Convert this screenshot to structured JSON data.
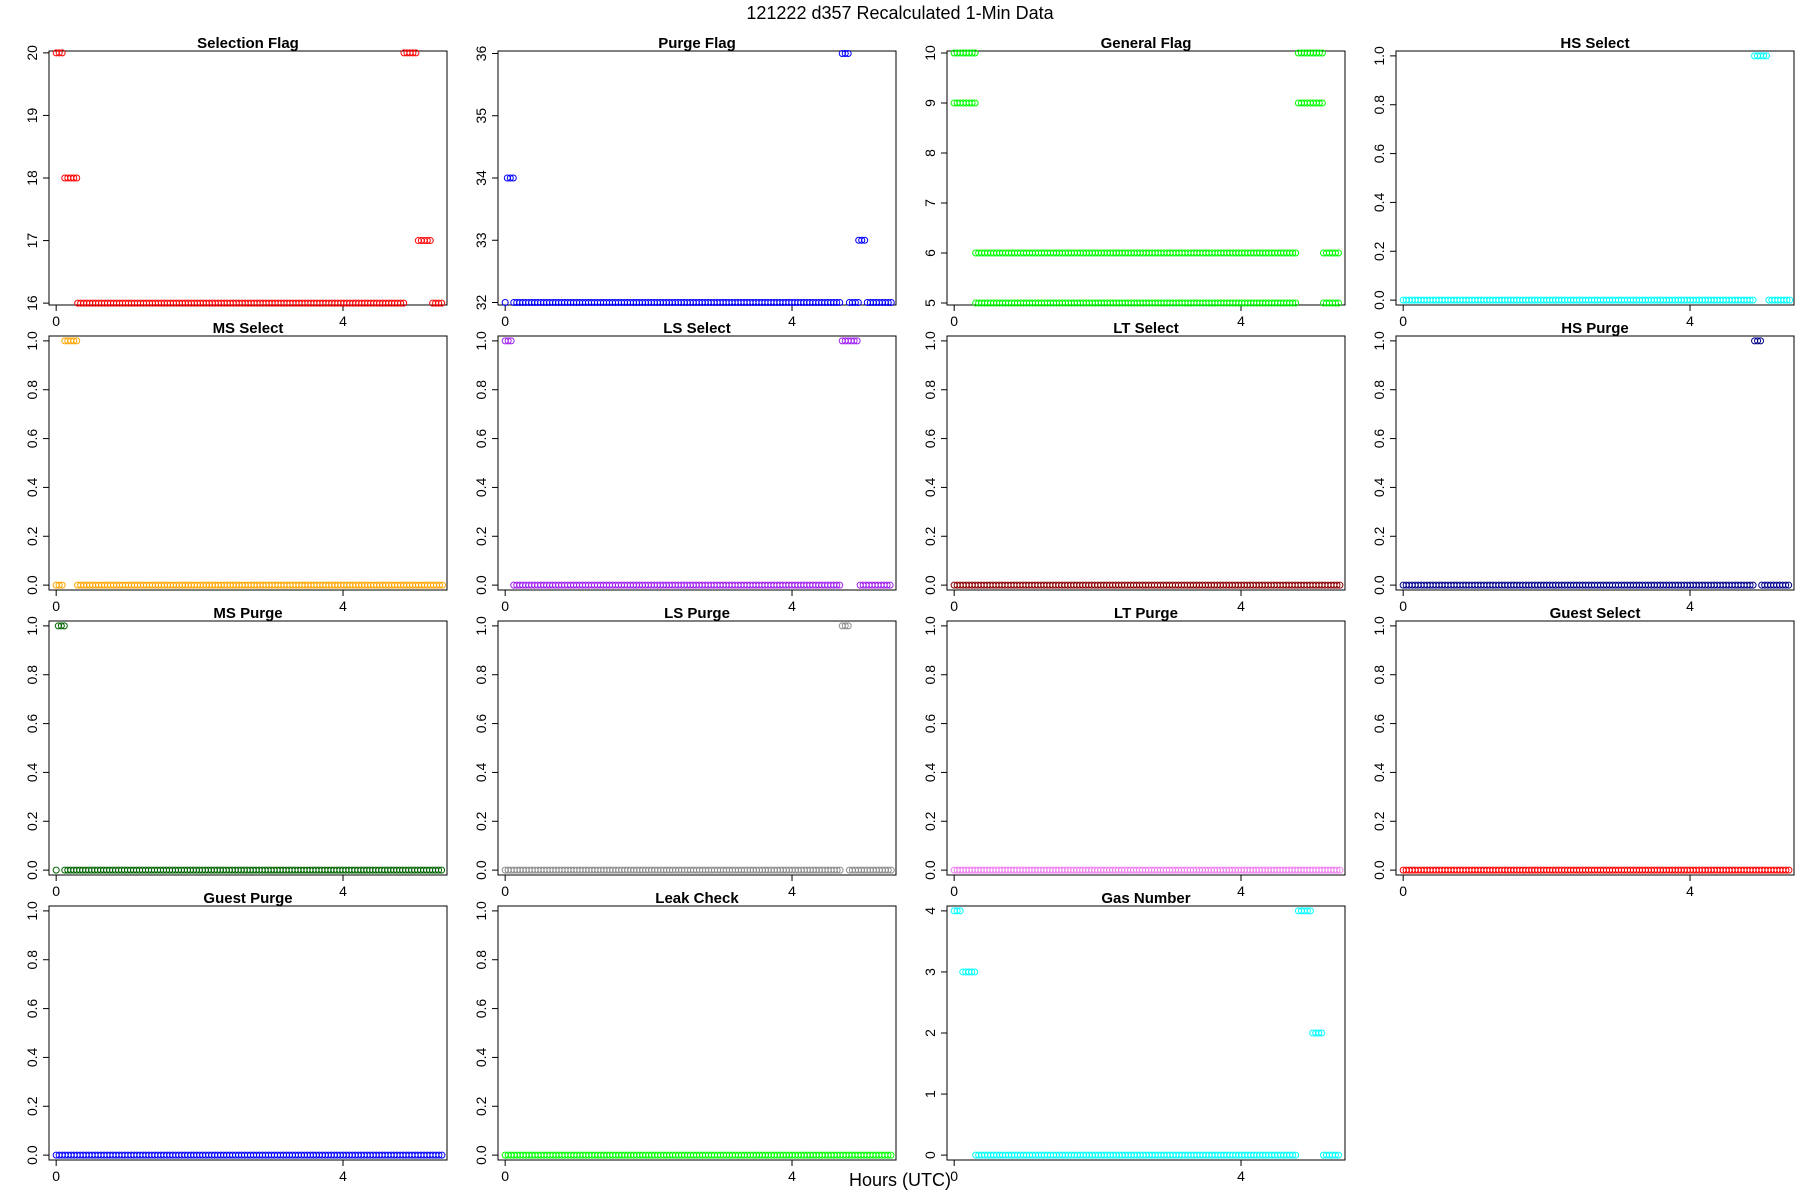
{
  "figure": {
    "title": "121222   d357   Recalculated 1-Min Data",
    "xlabel": "Hours (UTC)"
  },
  "chart_data": [
    {
      "type": "scatter",
      "title": "Selection Flag",
      "color": "#ff0000",
      "xlim": [
        -0.1,
        5.45
      ],
      "ylim": [
        15.97,
        20.03
      ],
      "xticks": [
        0,
        4
      ],
      "yticks": [
        16,
        17,
        18,
        19,
        20
      ],
      "runs": [
        [
          0,
          0.12,
          20
        ],
        [
          0.12,
          0.3,
          18
        ],
        [
          0.3,
          4.85,
          16
        ],
        [
          4.85,
          5.05,
          20
        ],
        [
          5.05,
          5.25,
          17
        ],
        [
          5.25,
          5.4,
          16
        ]
      ]
    },
    {
      "type": "scatter",
      "title": "Purge Flag",
      "color": "#0000ff",
      "xlim": [
        -0.1,
        5.45
      ],
      "ylim": [
        31.96,
        36.04
      ],
      "xticks": [
        0,
        4
      ],
      "yticks": [
        32,
        33,
        34,
        35,
        36
      ],
      "runs": [
        [
          0,
          0.03,
          32
        ],
        [
          0.03,
          0.12,
          34
        ],
        [
          0.12,
          4.7,
          32
        ],
        [
          4.7,
          4.8,
          36
        ],
        [
          4.8,
          4.93,
          32
        ],
        [
          4.93,
          5.05,
          33
        ],
        [
          5.05,
          5.4,
          32
        ]
      ]
    },
    {
      "type": "scatter",
      "title": "General Flag",
      "color": "#00ff00",
      "xlim": [
        -0.1,
        5.45
      ],
      "ylim": [
        4.96,
        10.04
      ],
      "xticks": [
        0,
        4
      ],
      "yticks": [
        5,
        6,
        7,
        8,
        9,
        10
      ],
      "runs": [
        [
          0,
          0.3,
          10
        ],
        [
          0,
          0.3,
          9
        ],
        [
          0.3,
          4.8,
          6
        ],
        [
          0.3,
          4.8,
          5
        ],
        [
          4.8,
          5.15,
          10
        ],
        [
          4.8,
          5.15,
          9
        ],
        [
          5.15,
          5.4,
          6
        ],
        [
          5.15,
          5.4,
          5
        ]
      ]
    },
    {
      "type": "scatter",
      "title": "HS Select",
      "color": "#00ffff",
      "xlim": [
        -0.1,
        5.45
      ],
      "ylim": [
        -0.02,
        1.02
      ],
      "xticks": [
        0,
        4
      ],
      "yticks": [
        0.0,
        0.2,
        0.4,
        0.6,
        0.8,
        1.0
      ],
      "ytick_labels": [
        "0.0",
        "0.2",
        "0.4",
        "0.6",
        "0.8",
        "1.0"
      ],
      "runs": [
        [
          0,
          4.9,
          0
        ],
        [
          4.9,
          5.1,
          1
        ],
        [
          5.1,
          5.4,
          0
        ]
      ]
    },
    {
      "type": "scatter",
      "title": "MS Select",
      "color": "#ffa500",
      "xlim": [
        -0.1,
        5.45
      ],
      "ylim": [
        -0.02,
        1.02
      ],
      "xticks": [
        0,
        4
      ],
      "yticks": [
        0.0,
        0.2,
        0.4,
        0.6,
        0.8,
        1.0
      ],
      "ytick_labels": [
        "0.0",
        "0.2",
        "0.4",
        "0.6",
        "0.8",
        "1.0"
      ],
      "runs": [
        [
          0,
          0.12,
          0
        ],
        [
          0.12,
          0.3,
          1
        ],
        [
          0.3,
          5.4,
          0
        ]
      ]
    },
    {
      "type": "scatter",
      "title": "LS Select",
      "color": "#a020f0",
      "xlim": [
        -0.1,
        5.45
      ],
      "ylim": [
        -0.02,
        1.02
      ],
      "xticks": [
        0,
        4
      ],
      "yticks": [
        0.0,
        0.2,
        0.4,
        0.6,
        0.8,
        1.0
      ],
      "ytick_labels": [
        "0.0",
        "0.2",
        "0.4",
        "0.6",
        "0.8",
        "1.0"
      ],
      "runs": [
        [
          0,
          0.12,
          1
        ],
        [
          0.12,
          4.7,
          0
        ],
        [
          4.7,
          4.95,
          1
        ],
        [
          4.95,
          5.4,
          0
        ]
      ]
    },
    {
      "type": "scatter",
      "title": "LT Select",
      "color": "#8b0000",
      "xlim": [
        -0.1,
        5.45
      ],
      "ylim": [
        -0.02,
        1.02
      ],
      "xticks": [
        0,
        4
      ],
      "yticks": [
        0.0,
        0.2,
        0.4,
        0.6,
        0.8,
        1.0
      ],
      "ytick_labels": [
        "0.0",
        "0.2",
        "0.4",
        "0.6",
        "0.8",
        "1.0"
      ],
      "runs": [
        [
          0,
          5.4,
          0
        ]
      ]
    },
    {
      "type": "scatter",
      "title": "HS Purge",
      "color": "#00008b",
      "xlim": [
        -0.1,
        5.45
      ],
      "ylim": [
        -0.02,
        1.02
      ],
      "xticks": [
        0,
        4
      ],
      "yticks": [
        0.0,
        0.2,
        0.4,
        0.6,
        0.8,
        1.0
      ],
      "ytick_labels": [
        "0.0",
        "0.2",
        "0.4",
        "0.6",
        "0.8",
        "1.0"
      ],
      "runs": [
        [
          0,
          4.9,
          0
        ],
        [
          4.9,
          5.0,
          1
        ],
        [
          5.0,
          5.4,
          0
        ]
      ]
    },
    {
      "type": "scatter",
      "title": "MS Purge",
      "color": "#006400",
      "xlim": [
        -0.1,
        5.45
      ],
      "ylim": [
        -0.02,
        1.02
      ],
      "xticks": [
        0,
        4
      ],
      "yticks": [
        0.0,
        0.2,
        0.4,
        0.6,
        0.8,
        1.0
      ],
      "ytick_labels": [
        "0.0",
        "0.2",
        "0.4",
        "0.6",
        "0.8",
        "1.0"
      ],
      "runs": [
        [
          0,
          0.03,
          0
        ],
        [
          0.03,
          0.12,
          1
        ],
        [
          0.12,
          5.4,
          0
        ]
      ]
    },
    {
      "type": "scatter",
      "title": "LS Purge",
      "color": "#8c8c8c",
      "xlim": [
        -0.1,
        5.45
      ],
      "ylim": [
        -0.02,
        1.02
      ],
      "xticks": [
        0,
        4
      ],
      "yticks": [
        0.0,
        0.2,
        0.4,
        0.6,
        0.8,
        1.0
      ],
      "ytick_labels": [
        "0.0",
        "0.2",
        "0.4",
        "0.6",
        "0.8",
        "1.0"
      ],
      "runs": [
        [
          0,
          4.7,
          0
        ],
        [
          4.7,
          4.8,
          1
        ],
        [
          4.8,
          5.4,
          0
        ]
      ]
    },
    {
      "type": "scatter",
      "title": "LT Purge",
      "color": "#ee82ee",
      "xlim": [
        -0.1,
        5.45
      ],
      "ylim": [
        -0.02,
        1.02
      ],
      "xticks": [
        0,
        4
      ],
      "yticks": [
        0.0,
        0.2,
        0.4,
        0.6,
        0.8,
        1.0
      ],
      "ytick_labels": [
        "0.0",
        "0.2",
        "0.4",
        "0.6",
        "0.8",
        "1.0"
      ],
      "runs": [
        [
          0,
          5.4,
          0
        ]
      ]
    },
    {
      "type": "scatter",
      "title": "Guest Select",
      "color": "#ff0000",
      "xlim": [
        -0.1,
        5.45
      ],
      "ylim": [
        -0.02,
        1.02
      ],
      "xticks": [
        0,
        4
      ],
      "yticks": [
        0.0,
        0.2,
        0.4,
        0.6,
        0.8,
        1.0
      ],
      "ytick_labels": [
        "0.0",
        "0.2",
        "0.4",
        "0.6",
        "0.8",
        "1.0"
      ],
      "runs": [
        [
          0,
          5.4,
          0
        ]
      ]
    },
    {
      "type": "scatter",
      "title": "Guest Purge",
      "color": "#0000ff",
      "xlim": [
        -0.1,
        5.45
      ],
      "ylim": [
        -0.02,
        1.02
      ],
      "xticks": [
        0,
        4
      ],
      "yticks": [
        0.0,
        0.2,
        0.4,
        0.6,
        0.8,
        1.0
      ],
      "ytick_labels": [
        "0.0",
        "0.2",
        "0.4",
        "0.6",
        "0.8",
        "1.0"
      ],
      "runs": [
        [
          0,
          5.4,
          0
        ]
      ]
    },
    {
      "type": "scatter",
      "title": "Leak Check",
      "color": "#00ff00",
      "xlim": [
        -0.1,
        5.45
      ],
      "ylim": [
        -0.02,
        1.02
      ],
      "xticks": [
        0,
        4
      ],
      "yticks": [
        0.0,
        0.2,
        0.4,
        0.6,
        0.8,
        1.0
      ],
      "ytick_labels": [
        "0.0",
        "0.2",
        "0.4",
        "0.6",
        "0.8",
        "1.0"
      ],
      "runs": [
        [
          0,
          5.4,
          0
        ]
      ]
    },
    {
      "type": "scatter",
      "title": "Gas Number",
      "color": "#00ffff",
      "xlim": [
        -0.1,
        5.45
      ],
      "ylim": [
        -0.08,
        4.08
      ],
      "xticks": [
        0,
        4
      ],
      "yticks": [
        0,
        1,
        2,
        3,
        4
      ],
      "runs": [
        [
          0,
          0.12,
          4
        ],
        [
          0.12,
          0.3,
          3
        ],
        [
          0.3,
          4.8,
          0
        ],
        [
          4.8,
          5.0,
          4
        ],
        [
          5.0,
          5.15,
          2
        ],
        [
          5.15,
          5.4,
          0
        ]
      ]
    }
  ]
}
